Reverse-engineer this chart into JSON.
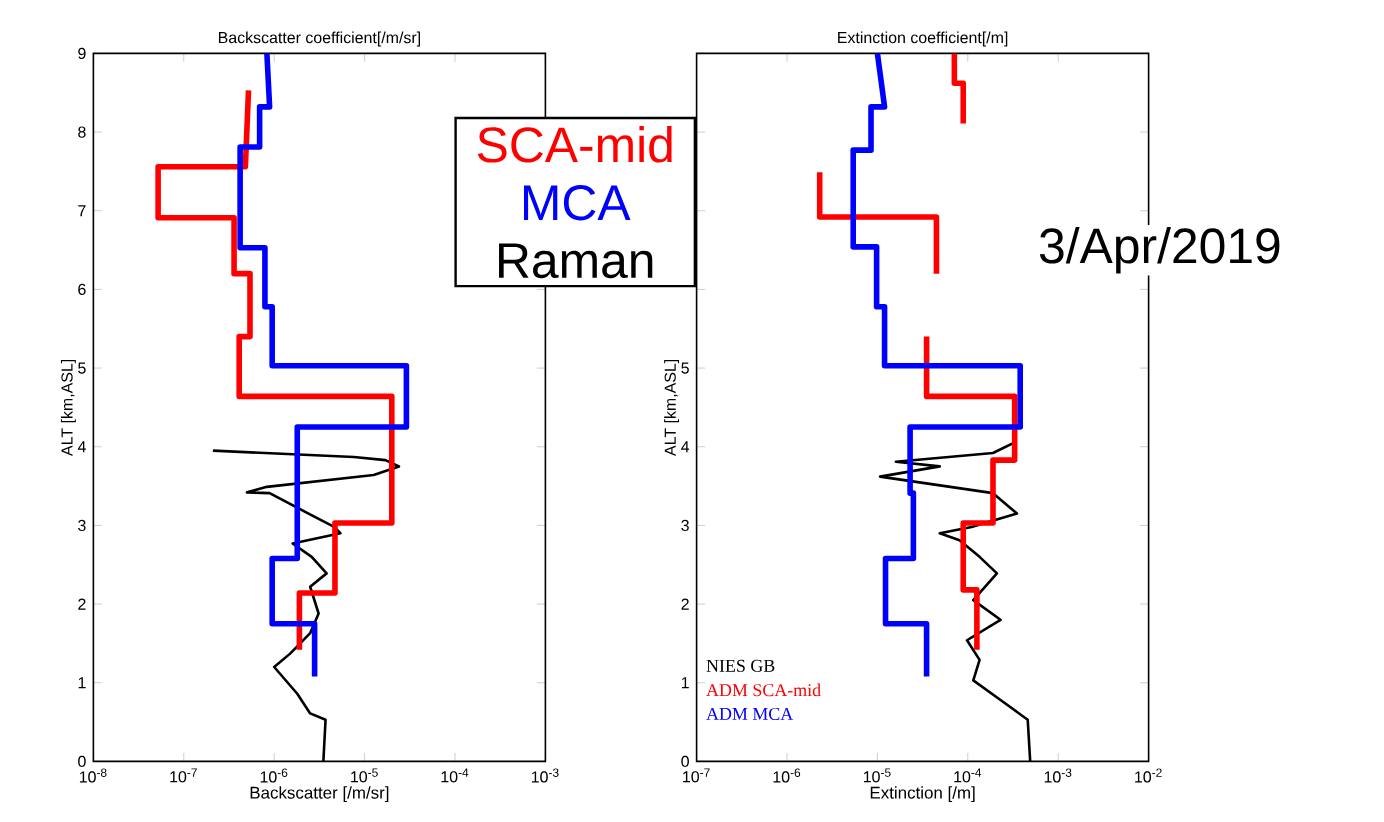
{
  "chart_data": [
    {
      "type": "line",
      "title": "Backscatter coefficient[/m/sr]",
      "xlabel": "Backscatter [/m/sr]",
      "ylabel": "ALT [km,ASL]",
      "log": "x",
      "xlim": [
        1e-08,
        0.001
      ],
      "ylim": [
        0,
        9
      ],
      "xticks": [
        {
          "value": 1e-08,
          "label": "10$^{-8}$"
        },
        {
          "value": 1e-07,
          "label": "10$^{-7}$"
        },
        {
          "value": 1e-06,
          "label": "10$^{-6}$"
        },
        {
          "value": 1e-05,
          "label": "10$^{-5}$"
        },
        {
          "value": 0.0001,
          "label": "10$^{-4}$"
        },
        {
          "value": 0.001,
          "label": "10$^{-3}$"
        }
      ],
      "yticks": [
        0,
        1,
        2,
        3,
        4,
        5,
        6,
        7,
        8,
        9
      ],
      "series": [
        {
          "color": "#000000",
          "x": [
            3.5e-06,
            3.7e-06,
            2.5e-06,
            1.8e-06,
            1e-06,
            1.5e-06,
            2.5e-06,
            3.1e-06,
            2.5e-06,
            3.8e-06,
            2.6e-06,
            1.6e-06,
            5.4e-06,
            4.6e-06,
            2.4e-06,
            8.9e-07,
            5e-07,
            8.3e-07,
            1.26e-05,
            2.4e-05,
            1.7e-05,
            7.6e-06,
            2.1e-07
          ],
          "values": [
            0,
            0.53,
            0.61,
            0.86,
            1.2,
            1.37,
            1.63,
            1.88,
            2.22,
            2.39,
            2.6,
            2.77,
            2.9,
            2.98,
            3.15,
            3.41,
            3.42,
            3.49,
            3.64,
            3.75,
            3.83,
            3.87,
            3.95
          ]
        },
        {
          "color": "#ff0000",
          "x": [
            5.2e-07,
            4.8e-07,
            5.2e-08,
            5.2e-08,
            3.6e-07,
            3.6e-07,
            5.4e-07,
            5.4e-07,
            4.1e-07,
            4.1e-07,
            2e-05,
            2e-05,
            4.7e-06,
            4.7e-06,
            1.9e-06,
            1.9e-06
          ],
          "values": [
            8.53,
            7.56,
            7.56,
            6.91,
            6.91,
            6.2,
            6.2,
            5.4,
            5.4,
            4.64,
            4.64,
            3.03,
            3.03,
            2.14,
            2.14,
            1.42
          ]
        },
        {
          "color": "#0000ff",
          "x": [
            8.3e-07,
            8.9e-07,
            6.9e-07,
            6.9e-07,
            4.2e-07,
            4.2e-07,
            7.9e-07,
            7.9e-07,
            9.5e-07,
            9.5e-07,
            2.9e-05,
            2.9e-05,
            1.8e-06,
            1.8e-06,
            9.5e-07,
            9.5e-07,
            2.8e-06,
            2.8e-06
          ],
          "values": [
            9,
            8.32,
            8.32,
            7.81,
            7.81,
            6.53,
            6.53,
            5.78,
            5.78,
            5.03,
            5.03,
            4.25,
            4.25,
            2.58,
            2.58,
            1.75,
            1.75,
            1.08
          ]
        }
      ],
      "annotations": [
        "SCA-mid",
        "MCA",
        "Raman"
      ]
    },
    {
      "type": "line",
      "title": "Extinction coefficient[/m]",
      "xlabel": "Extinction [/m]",
      "ylabel": "ALT [km,ASL]",
      "log": "x",
      "xlim": [
        1e-07,
        0.01
      ],
      "ylim": [
        0,
        9
      ],
      "xticks": [
        {
          "value": 1e-07,
          "label": "10$^{-7}$"
        },
        {
          "value": 1e-06,
          "label": "10$^{-6}$"
        },
        {
          "value": 1e-05,
          "label": "10$^{-5}$"
        },
        {
          "value": 0.0001,
          "label": "10$^{-4}$"
        },
        {
          "value": 0.001,
          "label": "10$^{-3}$"
        },
        {
          "value": 0.01,
          "label": "10$^{-2}$"
        }
      ],
      "yticks": [
        0,
        1,
        2,
        3,
        4,
        5,
        {
          "value": 6,
          "label": null
        },
        {
          "value": 7,
          "label": null
        },
        {
          "value": 8,
          "label": null
        },
        {
          "value": 9,
          "label": null
        }
      ],
      "legend": "bottom left",
      "series": [
        {
          "name": "NIES GB",
          "color": "#000000",
          "x": [
            0.00049,
            0.00046,
            0.00023,
            0.000115,
            0.000135,
            9.8e-05,
            0.00023,
            0.000115,
            0.00021,
            0.000135,
            8.1e-05,
            4.9e-05,
            0.00011,
            0.00035,
            0.00019,
            1.07e-05,
            4.9e-05,
            1.6e-05,
            0.00019,
            0.00031
          ],
          "values": [
            0,
            0.53,
            0.78,
            1.03,
            1.29,
            1.54,
            1.8,
            2.05,
            2.39,
            2.6,
            2.81,
            2.9,
            2.98,
            3.15,
            3.41,
            3.62,
            3.75,
            3.81,
            3.92,
            4.04
          ]
        },
        {
          "name": "ADM SCA-mid",
          "color": "#ff0000",
          "x": [
            7.1e-05,
            7.1e-05,
            8.9e-05,
            8.9e-05,
            null,
            2.3e-06,
            2.3e-06,
            4.5e-05,
            4.5e-05,
            null,
            3.5e-05,
            3.5e-05,
            0.00033,
            0.00033,
            0.00019,
            0.00019,
            8.9e-05,
            8.9e-05,
            0.000126,
            0.000126
          ],
          "values": [
            9,
            8.62,
            8.62,
            8.11,
            null,
            7.49,
            6.92,
            6.92,
            6.2,
            null,
            5.4,
            4.64,
            4.64,
            3.83,
            3.83,
            3.03,
            3.03,
            2.18,
            2.18,
            1.42
          ]
        },
        {
          "name": "ADM MCA",
          "color": "#0000ff",
          "x": [
            1e-05,
            1.2e-05,
            8.5e-06,
            8.5e-06,
            5.4e-06,
            5.4e-06,
            9.8e-06,
            9.8e-06,
            1.2e-05,
            1.2e-05,
            0.00038,
            0.00038,
            2.3e-05,
            2.3e-05,
            2.5e-05,
            2.5e-05,
            1.23e-05,
            1.23e-05,
            3.5e-05,
            3.5e-05
          ],
          "values": [
            9,
            8.32,
            8.32,
            7.77,
            7.77,
            6.54,
            6.54,
            5.78,
            5.78,
            5.03,
            5.03,
            4.25,
            4.25,
            3.41,
            3.41,
            2.58,
            2.58,
            1.75,
            1.75,
            1.08
          ]
        }
      ],
      "annotations": [
        "3/Apr/2019"
      ]
    }
  ]
}
